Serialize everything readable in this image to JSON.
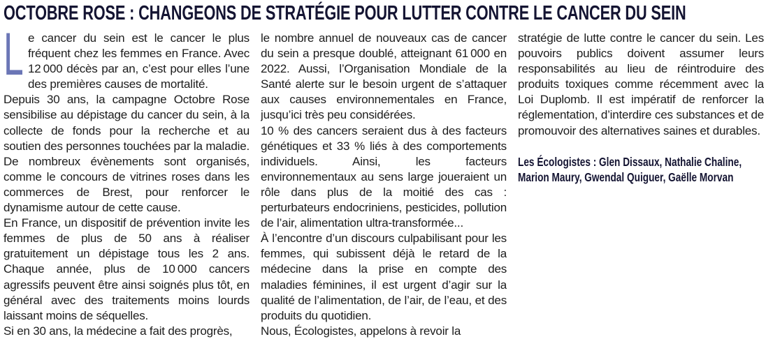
{
  "article": {
    "title": "OCTOBRE ROSE : CHANGEONS DE STRATÉGIE POUR LUTTER CONTRE LE CANCER DU SEIN",
    "drop_cap": "L",
    "columns": [
      {
        "paragraphs": [
          "e cancer du sein est le cancer le plus fréquent chez les femmes en France. Avec 12 000 décès par an, c’est pour elles l’une des premières causes de mortalité.",
          "Depuis 30 ans, la campagne Octobre Rose sensibilise au dépistage du cancer du sein, à la collecte de fonds pour la recherche et au soutien des personnes touchées par la maladie. De nombreux évènements sont organisés, comme le concours de vitrines roses dans les commerces de Brest, pour renforcer le dynamisme autour de cette cause.",
          "En France, un dispositif de prévention invite les femmes de plus de 50 ans à réaliser gratuitement un dépistage tous les 2 ans. Chaque année, plus de 10 000 cancers agressifs peuvent être ainsi soignés plus tôt, en général avec des traitements moins lourds laissant moins de séquelles.",
          "Si en 30 ans, la médecine a fait des progrès,"
        ]
      },
      {
        "paragraphs": [
          "le nombre annuel de nouveaux cas de cancer du sein a presque doublé, atteignant 61 000 en 2022. Aussi, l’Organisation Mondiale de la Santé alerte sur le besoin urgent de s’attaquer aux causes environnementales en France, jusqu’ici très peu considérées.",
          "10 % des cancers seraient dus à des facteurs génétiques et 33 % liés à des comportements individuels. Ainsi, les facteurs environnementaux au sens large joueraient un rôle dans plus de la moitié des cas : perturbateurs endocriniens, pesticides, pollution de l’air, alimentation ultra-transformée...",
          "À l’encontre d’un discours culpabilisant pour les femmes, qui subissent déjà le retard de la médecine dans la prise en compte des maladies féminines, il est urgent d’agir sur la qualité de l’alimentation, de l’air, de l’eau, et des produits du quotidien.",
          "Nous, Écologistes, appelons à revoir la"
        ]
      },
      {
        "paragraphs": [
          "stratégie de lutte contre le cancer du sein. Les pouvoirs publics doivent assumer leurs responsabilités au lieu de réintroduire des produits toxiques comme récemment avec la Loi Duplomb. Il est impératif de renforcer la réglementation, d’interdire ces substances et de promouvoir des alternatives saines et durables."
        ],
        "signature": "Les Écologistes : Glen Dissaux, Nathalie Chaline, Marion Maury, Gwendal Quiguer, Gaëlle Morvan"
      }
    ]
  },
  "colors": {
    "title": "#141432",
    "drop_cap": "#6b76b6",
    "body_text": "#1c1c1c"
  }
}
